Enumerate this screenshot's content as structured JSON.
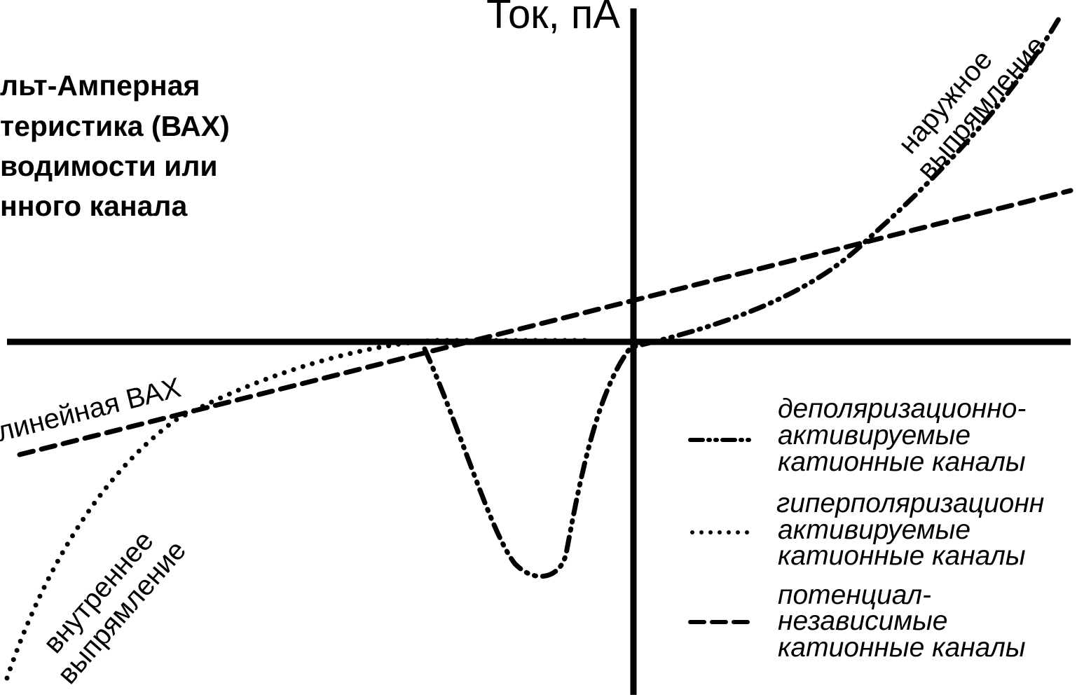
{
  "title_lines": [
    "льт-Амперная",
    "теристика (ВАХ)",
    "водимости или",
    "нного канала"
  ],
  "y_axis_label": "Ток, пА",
  "curve_labels": {
    "linear": "линейная ВАХ",
    "inward_1": "внутреннее",
    "inward_2": "выпрямление",
    "outward_1": "наружное",
    "outward_2": "выпрямление"
  },
  "legend": [
    {
      "style": "dash-dot-dot",
      "lines": [
        "деполяризационно-",
        "активируемые",
        "катионные каналы"
      ]
    },
    {
      "style": "dotted",
      "lines": [
        "гиперполяризационн",
        "активируемые",
        "катионные каналы"
      ]
    },
    {
      "style": "dashed",
      "lines": [
        "потенциал-",
        "независимые",
        "катионные каналы"
      ]
    }
  ]
}
